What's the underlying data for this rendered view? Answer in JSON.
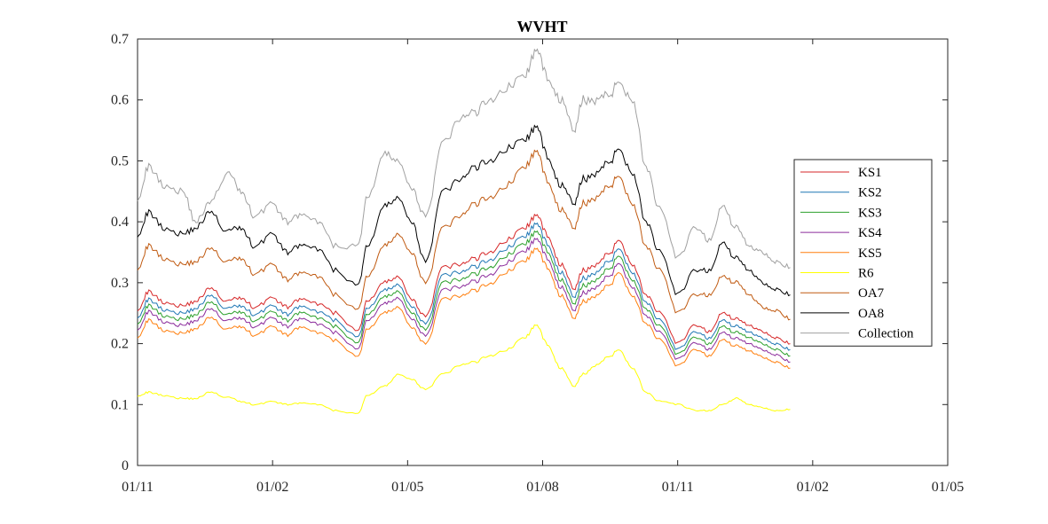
{
  "chart_data": {
    "type": "line",
    "title": "WVHT",
    "xlabel": "",
    "ylabel": "",
    "ylim": [
      0,
      0.7
    ],
    "yticks": [
      0,
      0.1,
      0.2,
      0.3,
      0.4,
      0.5,
      0.6,
      0.7
    ],
    "xlim": [
      0,
      18
    ],
    "xticks": [
      {
        "value": 0,
        "label": "01/11"
      },
      {
        "value": 3,
        "label": "01/02"
      },
      {
        "value": 6,
        "label": "01/05"
      },
      {
        "value": 9,
        "label": "01/08"
      },
      {
        "value": 12,
        "label": "01/11"
      },
      {
        "value": 15,
        "label": "01/02"
      },
      {
        "value": 18,
        "label": "01/05"
      }
    ],
    "grid": false,
    "legend_position": "right",
    "x": [
      0,
      0.25,
      0.6,
      1.0,
      1.3,
      1.6,
      2.0,
      2.3,
      2.6,
      3.0,
      3.3,
      3.6,
      4.0,
      4.4,
      4.9,
      5.1,
      5.5,
      5.8,
      6.1,
      6.4,
      6.8,
      7.2,
      7.5,
      7.8,
      8.2,
      8.6,
      8.85,
      9.1,
      9.4,
      9.7,
      9.9,
      10.2,
      10.5,
      10.7,
      11.0,
      11.3,
      11.6,
      12.0,
      12.4,
      12.7,
      13.0,
      13.3,
      13.6,
      13.9,
      14.2,
      14.5
    ],
    "series": [
      {
        "name": "KS1",
        "color": "#d62728",
        "values": [
          0.257,
          0.285,
          0.268,
          0.262,
          0.27,
          0.29,
          0.27,
          0.275,
          0.26,
          0.275,
          0.26,
          0.272,
          0.265,
          0.25,
          0.22,
          0.27,
          0.3,
          0.31,
          0.27,
          0.245,
          0.325,
          0.33,
          0.34,
          0.35,
          0.37,
          0.39,
          0.41,
          0.38,
          0.33,
          0.29,
          0.32,
          0.33,
          0.35,
          0.37,
          0.33,
          0.28,
          0.25,
          0.2,
          0.23,
          0.22,
          0.25,
          0.24,
          0.23,
          0.22,
          0.21,
          0.2
        ]
      },
      {
        "name": "KS2",
        "color": "#1f77b4",
        "values": [
          0.245,
          0.272,
          0.256,
          0.25,
          0.258,
          0.278,
          0.258,
          0.262,
          0.248,
          0.262,
          0.248,
          0.26,
          0.252,
          0.238,
          0.21,
          0.258,
          0.287,
          0.297,
          0.258,
          0.233,
          0.312,
          0.317,
          0.327,
          0.337,
          0.357,
          0.376,
          0.396,
          0.366,
          0.317,
          0.277,
          0.307,
          0.317,
          0.337,
          0.356,
          0.317,
          0.268,
          0.238,
          0.19,
          0.219,
          0.209,
          0.238,
          0.228,
          0.219,
          0.209,
          0.2,
          0.19
        ]
      },
      {
        "name": "KS3",
        "color": "#2ca02c",
        "values": [
          0.235,
          0.262,
          0.246,
          0.24,
          0.248,
          0.267,
          0.248,
          0.252,
          0.238,
          0.252,
          0.238,
          0.25,
          0.242,
          0.228,
          0.2,
          0.248,
          0.276,
          0.286,
          0.248,
          0.223,
          0.3,
          0.305,
          0.315,
          0.325,
          0.345,
          0.364,
          0.383,
          0.354,
          0.305,
          0.266,
          0.295,
          0.305,
          0.325,
          0.344,
          0.305,
          0.257,
          0.228,
          0.182,
          0.21,
          0.2,
          0.228,
          0.218,
          0.21,
          0.2,
          0.191,
          0.18
        ]
      },
      {
        "name": "KS4",
        "color": "#8c2d9c",
        "values": [
          0.225,
          0.252,
          0.236,
          0.23,
          0.238,
          0.256,
          0.238,
          0.242,
          0.228,
          0.242,
          0.228,
          0.24,
          0.232,
          0.218,
          0.19,
          0.238,
          0.265,
          0.275,
          0.238,
          0.213,
          0.288,
          0.293,
          0.303,
          0.313,
          0.333,
          0.352,
          0.371,
          0.342,
          0.293,
          0.255,
          0.283,
          0.293,
          0.313,
          0.332,
          0.293,
          0.246,
          0.218,
          0.174,
          0.201,
          0.191,
          0.218,
          0.208,
          0.2,
          0.19,
          0.182,
          0.17
        ]
      },
      {
        "name": "KS5",
        "color": "#ff7f0e",
        "values": [
          0.212,
          0.238,
          0.222,
          0.217,
          0.225,
          0.242,
          0.224,
          0.228,
          0.214,
          0.228,
          0.214,
          0.226,
          0.218,
          0.205,
          0.178,
          0.224,
          0.25,
          0.26,
          0.224,
          0.2,
          0.273,
          0.278,
          0.288,
          0.298,
          0.318,
          0.336,
          0.355,
          0.327,
          0.279,
          0.242,
          0.269,
          0.279,
          0.298,
          0.317,
          0.279,
          0.233,
          0.206,
          0.163,
          0.19,
          0.18,
          0.206,
          0.196,
          0.188,
          0.178,
          0.17,
          0.16
        ]
      },
      {
        "name": "R6",
        "color": "#ffff00",
        "values": [
          0.115,
          0.12,
          0.115,
          0.11,
          0.11,
          0.12,
          0.112,
          0.105,
          0.1,
          0.105,
          0.1,
          0.102,
          0.1,
          0.09,
          0.085,
          0.115,
          0.13,
          0.15,
          0.14,
          0.125,
          0.15,
          0.165,
          0.17,
          0.18,
          0.19,
          0.21,
          0.23,
          0.2,
          0.16,
          0.13,
          0.15,
          0.165,
          0.18,
          0.19,
          0.16,
          0.12,
          0.105,
          0.1,
          0.09,
          0.09,
          0.1,
          0.11,
          0.1,
          0.095,
          0.09,
          0.092
        ]
      },
      {
        "name": "OA7",
        "color": "#c05a11",
        "values": [
          0.325,
          0.36,
          0.34,
          0.33,
          0.335,
          0.355,
          0.335,
          0.34,
          0.315,
          0.33,
          0.305,
          0.315,
          0.31,
          0.28,
          0.255,
          0.31,
          0.36,
          0.38,
          0.345,
          0.3,
          0.39,
          0.41,
          0.43,
          0.44,
          0.46,
          0.49,
          0.515,
          0.47,
          0.42,
          0.39,
          0.43,
          0.44,
          0.46,
          0.475,
          0.43,
          0.36,
          0.32,
          0.25,
          0.28,
          0.28,
          0.31,
          0.3,
          0.28,
          0.26,
          0.255,
          0.24
        ]
      },
      {
        "name": "OA8",
        "color": "#000000",
        "values": [
          0.38,
          0.415,
          0.39,
          0.38,
          0.39,
          0.415,
          0.385,
          0.39,
          0.36,
          0.38,
          0.35,
          0.36,
          0.355,
          0.32,
          0.295,
          0.36,
          0.425,
          0.44,
          0.395,
          0.335,
          0.45,
          0.47,
          0.49,
          0.5,
          0.52,
          0.535,
          0.555,
          0.51,
          0.46,
          0.43,
          0.47,
          0.48,
          0.5,
          0.52,
          0.48,
          0.4,
          0.35,
          0.28,
          0.32,
          0.32,
          0.365,
          0.34,
          0.32,
          0.3,
          0.29,
          0.28
        ]
      },
      {
        "name": "Collection",
        "color": "#a0a0a0",
        "values": [
          0.44,
          0.49,
          0.46,
          0.45,
          0.4,
          0.43,
          0.48,
          0.45,
          0.41,
          0.43,
          0.4,
          0.41,
          0.4,
          0.36,
          0.36,
          0.44,
          0.51,
          0.5,
          0.45,
          0.41,
          0.53,
          0.57,
          0.58,
          0.6,
          0.62,
          0.64,
          0.68,
          0.64,
          0.6,
          0.55,
          0.6,
          0.6,
          0.61,
          0.63,
          0.6,
          0.49,
          0.42,
          0.34,
          0.39,
          0.37,
          0.425,
          0.39,
          0.36,
          0.35,
          0.335,
          0.325
        ]
      }
    ]
  }
}
